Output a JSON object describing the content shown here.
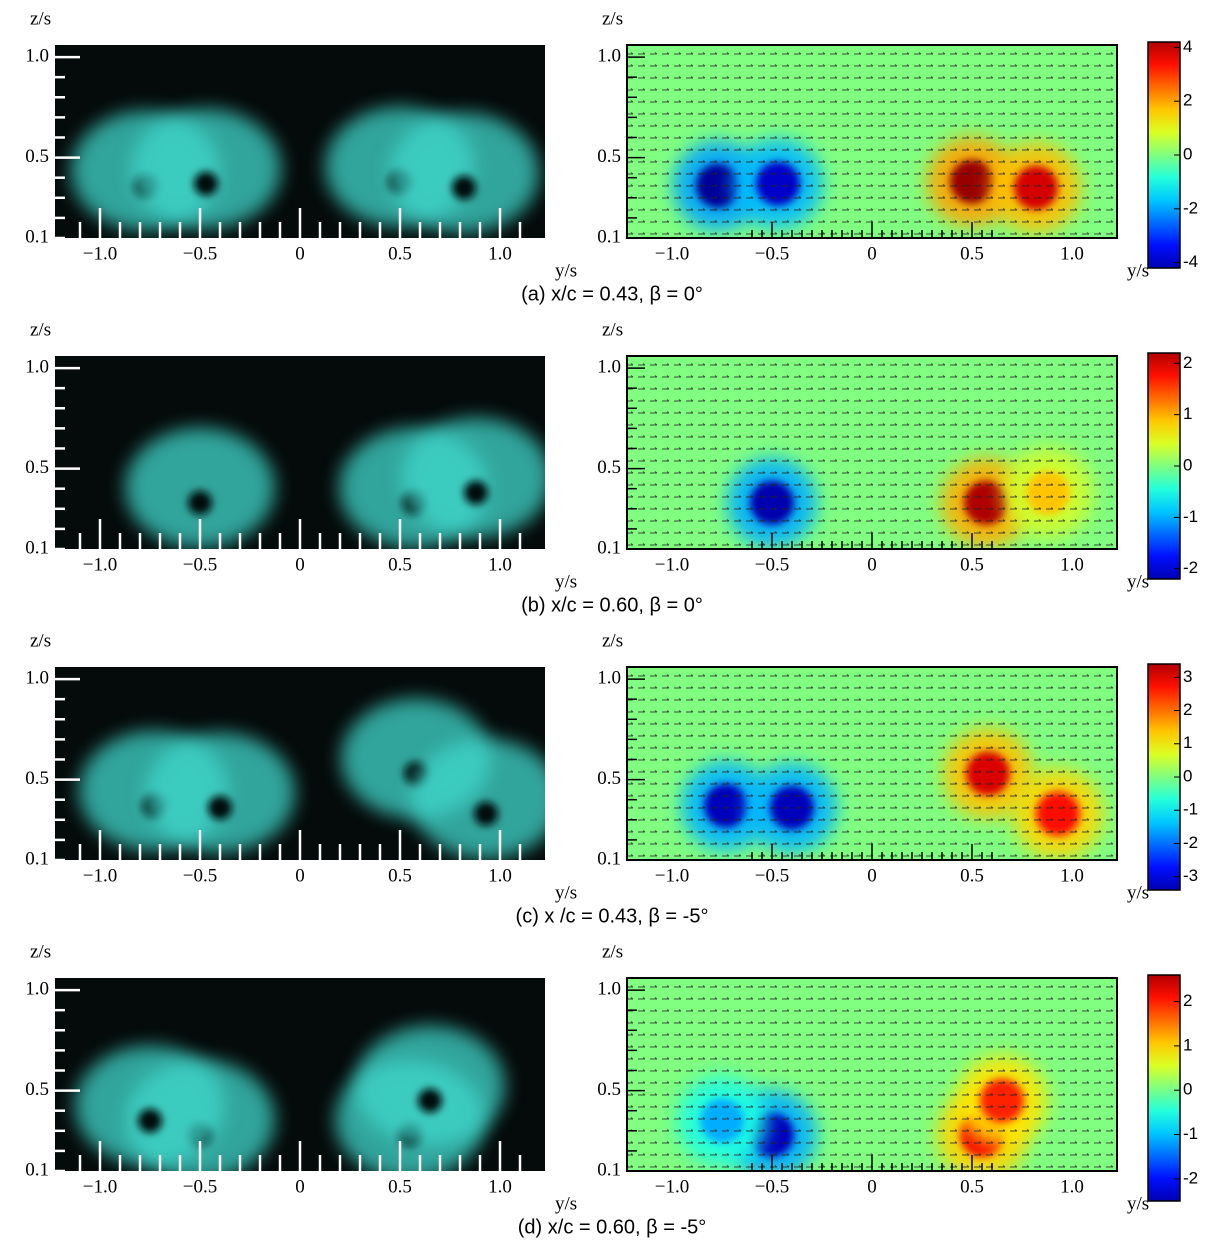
{
  "axes": {
    "y_label": "z/s",
    "x_label": "y/s",
    "xlim": [
      -1.225,
      1.225
    ],
    "ylim": [
      0.1,
      1.06
    ],
    "xticks": [
      {
        "value": -1,
        "label": "−1.0"
      },
      {
        "value": -0.5,
        "label": "−0.5"
      },
      0,
      {
        "value": 0.5,
        "label": "0.5"
      },
      {
        "value": 1,
        "label": "1.0"
      }
    ],
    "yticks": [
      {
        "value": 1,
        "label": "1.0"
      },
      0.5,
      0.1
    ]
  },
  "panels": [
    {
      "caption": "(a) x/c = 0.43, β = 0°",
      "colorbar": {
        "clim": [
          -4.2,
          4.2
        ],
        "ticks": [
          4,
          2,
          0,
          -2,
          -4
        ]
      },
      "vortices": [
        {
          "y": -0.77,
          "z": 0.36,
          "w": -4
        },
        {
          "y": -0.47,
          "z": 0.37,
          "w": -3.6
        },
        {
          "y": 0.5,
          "z": 0.38,
          "w": 4
        },
        {
          "y": 0.82,
          "z": 0.35,
          "w": 3.5
        }
      ]
    },
    {
      "caption": "(b) x/c = 0.60, β = 0°",
      "colorbar": {
        "clim": [
          -2.2,
          2.2
        ],
        "ticks": [
          2,
          1,
          0,
          -1,
          -2
        ]
      },
      "vortices": [
        {
          "y": -0.5,
          "z": 0.33,
          "w": -2
        },
        {
          "y": 0.57,
          "z": 0.33,
          "w": 2
        },
        {
          "y": 0.88,
          "z": 0.38,
          "w": 0.8
        }
      ]
    },
    {
      "caption": "(c) x /c = 0.43, β = -5°",
      "colorbar": {
        "clim": [
          -3.4,
          3.4
        ],
        "ticks": [
          3,
          2,
          1,
          0,
          -1,
          -2,
          -3
        ]
      },
      "vortices": [
        {
          "y": -0.73,
          "z": 0.37,
          "w": -3
        },
        {
          "y": -0.4,
          "z": 0.36,
          "w": -3
        },
        {
          "y": 0.58,
          "z": 0.53,
          "w": 2.8
        },
        {
          "y": 0.93,
          "z": 0.33,
          "w": 2.5
        }
      ]
    },
    {
      "caption": "(d) x/c = 0.60, β = -5°",
      "colorbar": {
        "clim": [
          -2.5,
          2.6
        ],
        "ticks": [
          2,
          1,
          0,
          -1,
          -2
        ]
      },
      "vortices": [
        {
          "y": -0.5,
          "z": 0.28,
          "w": -2.2
        },
        {
          "y": -0.75,
          "z": 0.35,
          "w": -1
        },
        {
          "y": 0.55,
          "z": 0.28,
          "w": 2
        },
        {
          "y": 0.65,
          "z": 0.45,
          "w": 1.8
        }
      ]
    }
  ]
}
